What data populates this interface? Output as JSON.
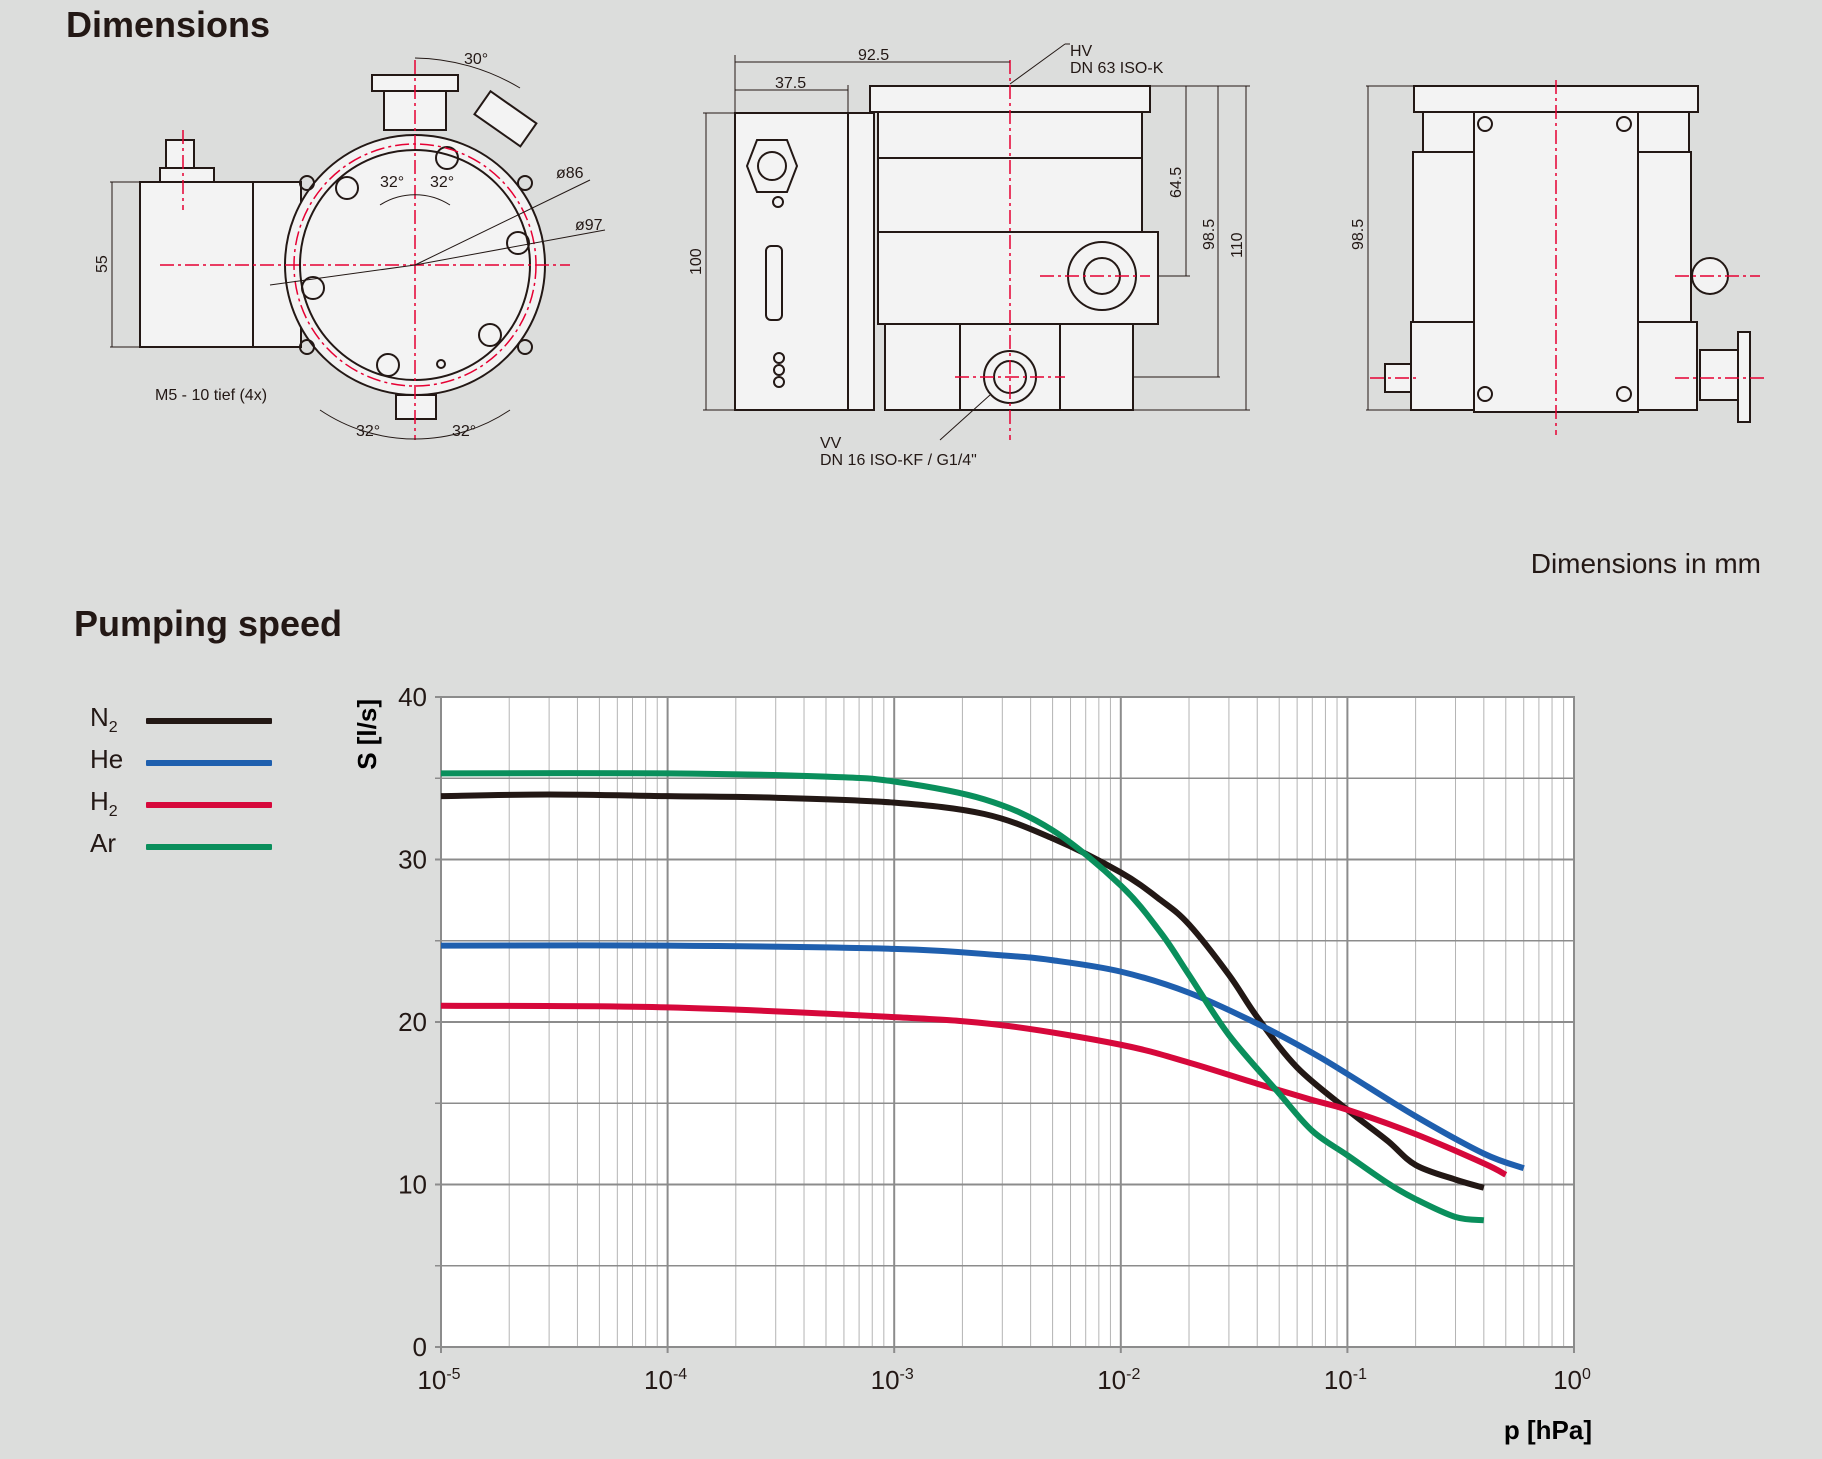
{
  "headings": {
    "dimensions": "Dimensions",
    "pumping_speed": "Pumping speed",
    "dimensions_note": "Dimensions in mm"
  },
  "drawing_labels": {
    "front": {
      "angle_top": "30°",
      "angle_inner_left": "32°",
      "angle_inner_right": "32°",
      "diameter_86": "ø86",
      "diameter_97": "ø97",
      "height_55": "55",
      "thread_note": "M5 - 10 tief (4x)",
      "angle_bottom_left": "32°",
      "angle_bottom_right": "32°"
    },
    "side": {
      "width_92_5": "92.5",
      "width_37_5": "37.5",
      "hv_label": "HV",
      "hv_flange": "DN 63 ISO-K",
      "height_100": "100",
      "height_64_5": "64.5",
      "height_98_5": "98.5",
      "height_110": "110",
      "vv_label": "VV",
      "vv_flange": "DN 16 ISO-KF / G1/4\""
    },
    "rear": {
      "height_98_5": "98.5"
    }
  },
  "legend": [
    {
      "label": "N",
      "sub": "2",
      "color": "#231815"
    },
    {
      "label": "He",
      "sub": "",
      "color": "#1f5fae"
    },
    {
      "label": "H",
      "sub": "2",
      "color": "#d6083b"
    },
    {
      "label": "Ar",
      "sub": "",
      "color": "#0a8f5c"
    }
  ],
  "chart_data": {
    "type": "line",
    "x_scale": "log",
    "xlim": [
      1e-05,
      1
    ],
    "ylim": [
      0,
      40
    ],
    "xlabel": "p [hPa]",
    "ylabel": "S [l/s]",
    "x_ticks": [
      {
        "base": "10",
        "exp": "-5"
      },
      {
        "base": "10",
        "exp": "-4"
      },
      {
        "base": "10",
        "exp": "-3"
      },
      {
        "base": "10",
        "exp": "-2"
      },
      {
        "base": "10",
        "exp": "-1"
      },
      {
        "base": "10",
        "exp": "0"
      }
    ],
    "y_ticks": [
      "0",
      "10",
      "20",
      "30",
      "40"
    ],
    "grid": true,
    "legend_position": "left",
    "series": [
      {
        "name": "N2",
        "color": "#231815",
        "x": [
          1e-05,
          3e-05,
          0.0001,
          0.0003,
          0.001,
          0.0025,
          0.005,
          0.01,
          0.015,
          0.02,
          0.03,
          0.04,
          0.06,
          0.1,
          0.15,
          0.2,
          0.3,
          0.4
        ],
        "y": [
          33.9,
          34.0,
          33.9,
          33.8,
          33.5,
          32.8,
          31.3,
          29.2,
          27.5,
          26.0,
          22.9,
          20.3,
          17.2,
          14.6,
          12.7,
          11.2,
          10.3,
          9.8
        ]
      },
      {
        "name": "He",
        "color": "#1f5fae",
        "x": [
          1e-05,
          0.0001,
          0.001,
          0.003,
          0.005,
          0.01,
          0.02,
          0.04,
          0.07,
          0.1,
          0.2,
          0.4,
          0.6
        ],
        "y": [
          24.7,
          24.7,
          24.5,
          24.1,
          23.8,
          23.1,
          21.8,
          19.9,
          18.1,
          16.8,
          14.2,
          11.9,
          11.0
        ]
      },
      {
        "name": "H2",
        "color": "#d6083b",
        "x": [
          1e-05,
          0.0001,
          0.001,
          0.003,
          0.01,
          0.02,
          0.04,
          0.07,
          0.1,
          0.2,
          0.4,
          0.5
        ],
        "y": [
          21.0,
          20.9,
          20.3,
          19.8,
          18.6,
          17.5,
          16.2,
          15.2,
          14.6,
          13.1,
          11.3,
          10.6
        ]
      },
      {
        "name": "Ar",
        "color": "#0a8f5c",
        "x": [
          1e-05,
          0.0001,
          0.0005,
          0.001,
          0.0025,
          0.005,
          0.01,
          0.015,
          0.02,
          0.03,
          0.05,
          0.07,
          0.1,
          0.15,
          0.2,
          0.3,
          0.4
        ],
        "y": [
          35.3,
          35.3,
          35.1,
          34.8,
          33.7,
          31.8,
          28.4,
          25.5,
          22.9,
          19.2,
          15.6,
          13.3,
          11.8,
          10.1,
          9.1,
          8.0,
          7.8
        ]
      }
    ]
  }
}
